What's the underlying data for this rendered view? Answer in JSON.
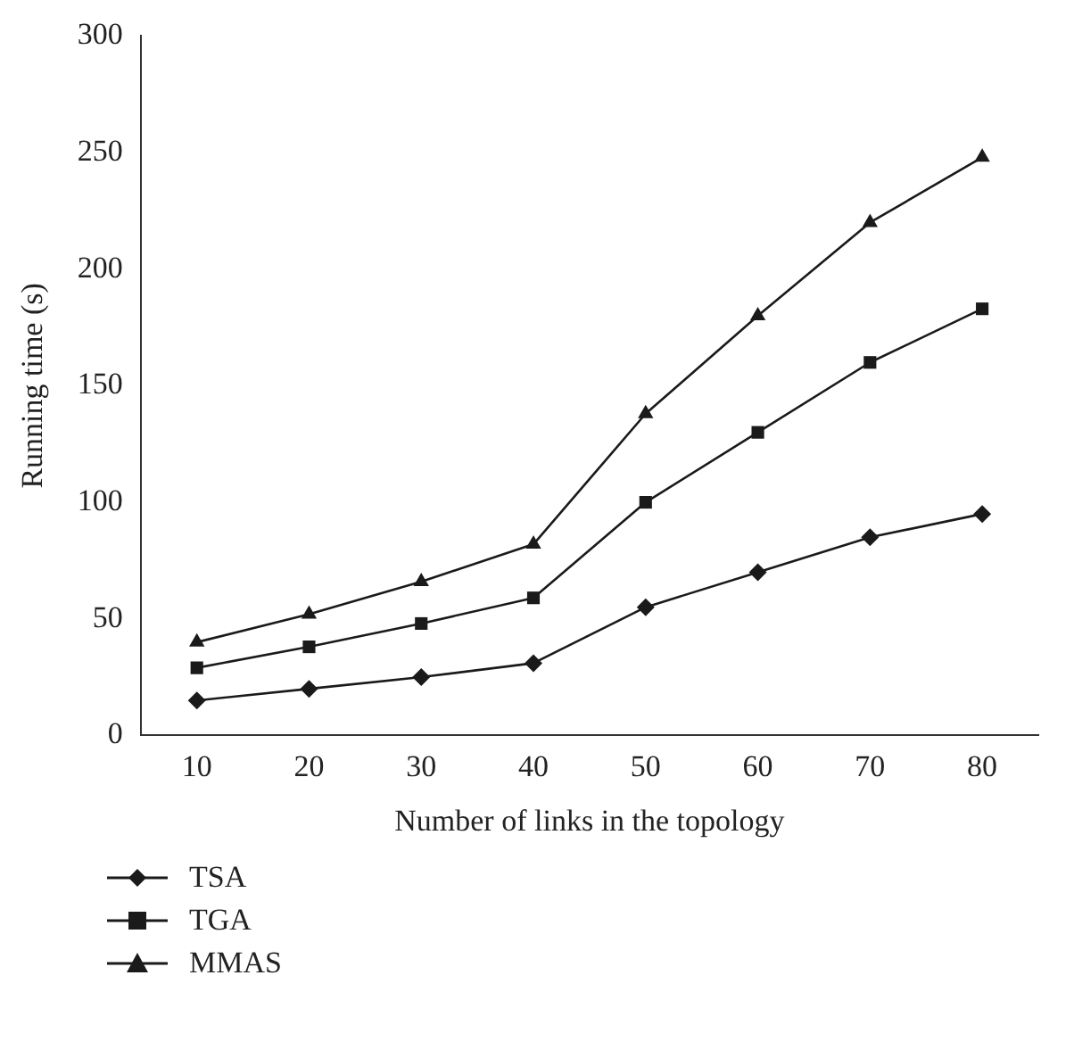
{
  "chart_data": {
    "type": "line",
    "xlabel": "Number of links in the topology",
    "ylabel": "Running time (s)",
    "categories": [
      "10",
      "20",
      "30",
      "40",
      "50",
      "60",
      "70",
      "80"
    ],
    "series": [
      {
        "name": "TSA",
        "color": "#1a1a1a",
        "marker": "diamond",
        "values": [
          15,
          20,
          25,
          31,
          55,
          70,
          85,
          95
        ]
      },
      {
        "name": "TGA",
        "color": "#1a1a1a",
        "marker": "square",
        "values": [
          29,
          38,
          48,
          59,
          100,
          130,
          160,
          183
        ]
      },
      {
        "name": "MMAS",
        "color": "#1a1a1a",
        "marker": "triangle",
        "values": [
          40,
          52,
          66,
          82,
          138,
          180,
          220,
          248
        ]
      }
    ],
    "ylim": [
      0,
      300
    ],
    "yticks": [
      0,
      50,
      100,
      150,
      200,
      250,
      300
    ],
    "grid": false,
    "legend": "bottom left",
    "line_style": "solid"
  }
}
